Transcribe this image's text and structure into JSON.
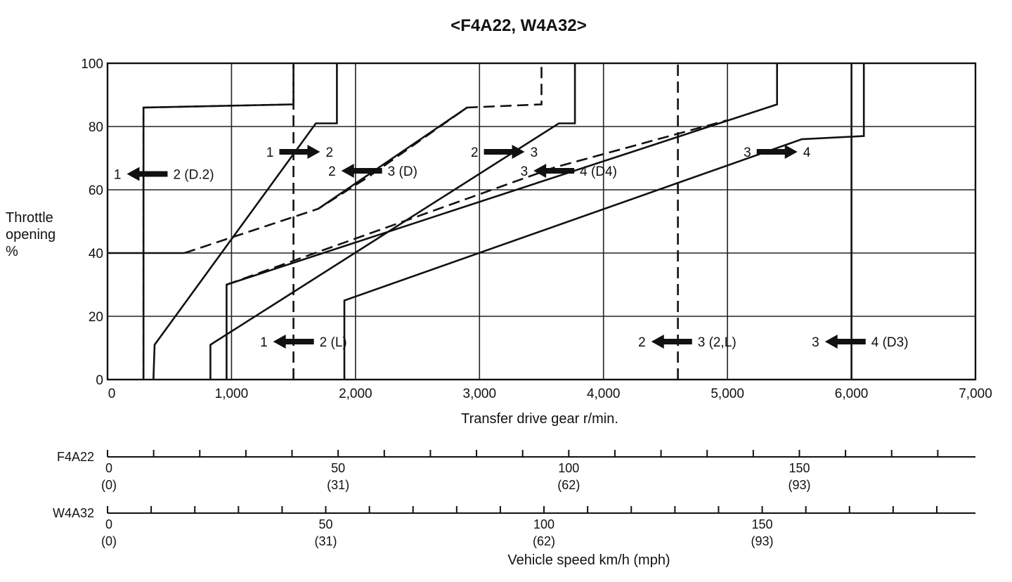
{
  "chart_data": {
    "type": "line",
    "title": "<F4A22, W4A32>",
    "xlabel": "Transfer drive gear r/min.",
    "ylabel_lines": [
      "Throttle",
      "opening",
      "%"
    ],
    "xlim": [
      0,
      7000
    ],
    "ylim": [
      0,
      100
    ],
    "x_ticks": [
      0,
      1000,
      2000,
      3000,
      4000,
      5000,
      6000,
      7000
    ],
    "x_tick_labels": [
      "0",
      "1,000",
      "2,000",
      "3,000",
      "4,000",
      "5,000",
      "6,000",
      "7,000"
    ],
    "y_ticks": [
      0,
      20,
      40,
      60,
      80,
      100
    ],
    "y_tick_labels": [
      "0",
      "20",
      "40",
      "60",
      "80",
      "100"
    ],
    "grid": true,
    "series": [
      {
        "key": "up12",
        "style": "solid",
        "points": [
          [
            370,
            0
          ],
          [
            380,
            11
          ],
          [
            1680,
            81
          ],
          [
            1850,
            81
          ],
          [
            1850,
            100
          ]
        ]
      },
      {
        "key": "down21_low",
        "style": "solid",
        "points": [
          [
            290,
            0
          ],
          [
            290,
            86
          ],
          [
            1500,
            87
          ]
        ]
      },
      {
        "key": "down21_high",
        "style": "dashed",
        "points": [
          [
            290,
            86
          ],
          [
            1500,
            87
          ],
          [
            1500,
            100
          ]
        ]
      },
      {
        "key": "down32_lowthrottle",
        "style": "solid",
        "points": [
          [
            620,
            40
          ],
          [
            0,
            40
          ]
        ]
      },
      {
        "key": "down32_main",
        "style": "dashed",
        "points": [
          [
            620,
            40
          ],
          [
            1700,
            54
          ],
          [
            2100,
            64
          ],
          [
            2900,
            86
          ],
          [
            3500,
            87
          ],
          [
            3500,
            100
          ]
        ]
      },
      {
        "key": "down32_a",
        "style": "solid",
        "points": [
          [
            1700,
            54
          ],
          [
            2900,
            86
          ]
        ]
      },
      {
        "key": "up23",
        "style": "solid",
        "points": [
          [
            830,
            0
          ],
          [
            830,
            11
          ],
          [
            3640,
            81
          ],
          [
            3770,
            81
          ],
          [
            3770,
            100
          ]
        ]
      },
      {
        "key": "down43_low",
        "style": "solid",
        "points": [
          [
            960,
            0
          ],
          [
            960,
            30
          ],
          [
            5400,
            87
          ],
          [
            5400,
            100
          ]
        ]
      },
      {
        "key": "down43_mid",
        "style": "dashed",
        "points": [
          [
            960,
            30
          ],
          [
            3600,
            67
          ],
          [
            5000,
            82
          ]
        ]
      },
      {
        "key": "up34",
        "style": "solid",
        "points": [
          [
            1910,
            0
          ],
          [
            1910,
            25
          ],
          [
            5600,
            76
          ],
          [
            6100,
            77
          ],
          [
            6100,
            100
          ]
        ]
      },
      {
        "key": "rpm_1_2",
        "style": "dashed",
        "points": [
          [
            1500,
            0
          ],
          [
            1500,
            100
          ]
        ]
      },
      {
        "key": "rpm_2_3",
        "style": "dashed",
        "points": [
          [
            4600,
            0
          ],
          [
            4600,
            100
          ]
        ]
      },
      {
        "key": "rpm_3_4",
        "style": "solid",
        "points": [
          [
            6000,
            0
          ],
          [
            6000,
            100
          ]
        ]
      },
      {
        "key": "rpm_low",
        "style": "dashed",
        "points": [
          [
            290,
            0
          ],
          [
            290,
            86
          ]
        ]
      }
    ],
    "annotations": [
      {
        "left": "1",
        "right": "2",
        "dir": "right",
        "x": 1550,
        "y": 72
      },
      {
        "left": "2",
        "right": "3",
        "dir": "right",
        "x": 3200,
        "y": 72
      },
      {
        "left": "3",
        "right": "4",
        "dir": "right",
        "x": 5400,
        "y": 72
      },
      {
        "left": "1",
        "right": "2 (D.2)",
        "dir": "left",
        "x": 320,
        "y": 65
      },
      {
        "left": "2",
        "right": "3 (D)",
        "dir": "left",
        "x": 2050,
        "y": 66
      },
      {
        "left": "3",
        "right": "4 (D4)",
        "dir": "left",
        "x": 3600,
        "y": 66
      },
      {
        "left": "1",
        "right": "2 (L)",
        "dir": "left",
        "x": 1500,
        "y": 12
      },
      {
        "left": "2",
        "right": "3 (2,L)",
        "dir": "left",
        "x": 4550,
        "y": 12
      },
      {
        "left": "3",
        "right": "4 (D3)",
        "dir": "left",
        "x": 5950,
        "y": 12
      }
    ],
    "speed_scales": [
      {
        "name": "F4A22",
        "rpm_per_kmh": 37.2,
        "max_kmh": 190,
        "labels": [
          {
            "kmh": 0,
            "km": "0",
            "mph": "(0)"
          },
          {
            "kmh": 50,
            "km": "50",
            "mph": "(31)"
          },
          {
            "kmh": 100,
            "km": "100",
            "mph": "(62)"
          },
          {
            "kmh": 150,
            "km": "150",
            "mph": "(93)"
          }
        ]
      },
      {
        "name": "W4A32",
        "rpm_per_kmh": 35.2,
        "max_kmh": 200,
        "labels": [
          {
            "kmh": 0,
            "km": "0",
            "mph": "(0)"
          },
          {
            "kmh": 50,
            "km": "50",
            "mph": "(31)"
          },
          {
            "kmh": 100,
            "km": "100",
            "mph": "(62)"
          },
          {
            "kmh": 150,
            "km": "150",
            "mph": "(93)"
          }
        ]
      }
    ],
    "speed_axis_label": "Vehicle speed km/h (mph)"
  }
}
